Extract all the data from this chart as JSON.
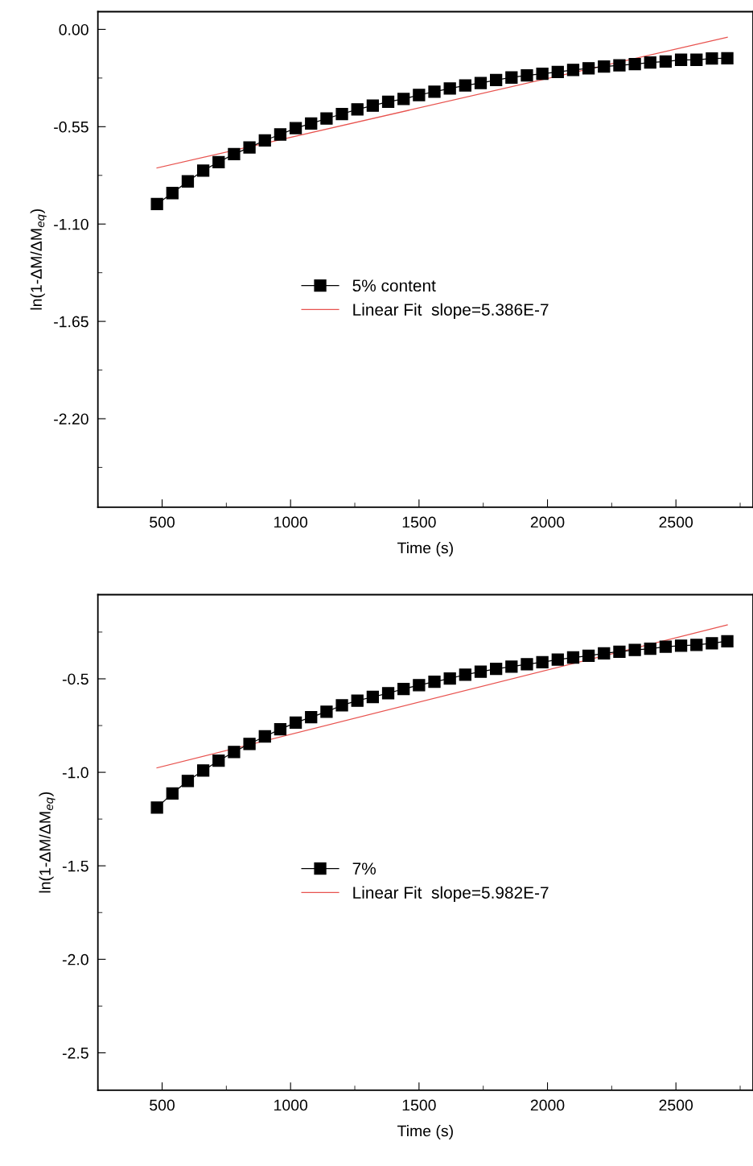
{
  "chart_data": [
    {
      "type": "line",
      "xlabel": "Time (s)",
      "ylabel": "ln(1-ΔM/ΔM$_{eq}$)",
      "xlim": [
        250,
        2800
      ],
      "xticks": [
        500,
        1000,
        1500,
        2000,
        2500
      ],
      "ylim": [
        -2.7,
        0.1
      ],
      "yticks": [
        {
          "value": 0,
          "label": "0.00"
        },
        -0.55,
        {
          "value": -1.1,
          "label": "-1.10"
        },
        -1.65,
        {
          "value": -2.2,
          "label": "-2.20"
        }
      ],
      "grid": false,
      "legend": "center",
      "series": [
        {
          "name": "5% content",
          "color": "#000000",
          "marker": "square",
          "line_style": "solid",
          "x": [
            480,
            540,
            600,
            660,
            720,
            780,
            840,
            900,
            960,
            1020,
            1080,
            1140,
            1200,
            1260,
            1320,
            1380,
            1440,
            1500,
            1560,
            1620,
            1680,
            1740,
            1800,
            1860,
            1920,
            1980,
            2040,
            2100,
            2160,
            2220,
            2280,
            2340,
            2400,
            2460,
            2520,
            2580,
            2640,
            2700
          ],
          "values": [
            -0.987,
            -0.925,
            -0.859,
            -0.798,
            -0.75,
            -0.705,
            -0.667,
            -0.627,
            -0.594,
            -0.558,
            -0.532,
            -0.504,
            -0.478,
            -0.452,
            -0.431,
            -0.409,
            -0.393,
            -0.371,
            -0.352,
            -0.334,
            -0.317,
            -0.303,
            -0.286,
            -0.272,
            -0.26,
            -0.251,
            -0.241,
            -0.229,
            -0.22,
            -0.21,
            -0.203,
            -0.196,
            -0.187,
            -0.182,
            -0.172,
            -0.172,
            -0.165,
            -0.163
          ]
        },
        {
          "name": "Linear Fit  slope=5.386E-7",
          "type": "line",
          "color": "#e8534f",
          "marker": "none",
          "line_style": "solid",
          "x": [
            480,
            2700
          ],
          "values": [
            -0.783,
            -0.045
          ]
        }
      ]
    },
    {
      "type": "line",
      "xlabel": "Time (s)",
      "ylabel": "ln(1-ΔM/ΔM$_{eq}$)",
      "xlim": [
        250,
        2800
      ],
      "xticks": [
        500,
        1000,
        1500,
        2000,
        2500
      ],
      "ylim": [
        -2.7,
        -0.05
      ],
      "yticks": [
        -0.5,
        {
          "value": -1.0,
          "label": "-1.0"
        },
        -1.5,
        {
          "value": -2.0,
          "label": "-2.0"
        },
        -2.5
      ],
      "grid": false,
      "legend": "center",
      "series": [
        {
          "name": "7%",
          "color": "#000000",
          "marker": "square",
          "line_style": "solid",
          "x": [
            480,
            540,
            600,
            660,
            720,
            780,
            840,
            900,
            960,
            1020,
            1080,
            1140,
            1200,
            1260,
            1320,
            1380,
            1440,
            1500,
            1560,
            1620,
            1680,
            1740,
            1800,
            1860,
            1920,
            1980,
            2040,
            2100,
            2160,
            2220,
            2280,
            2340,
            2400,
            2460,
            2520,
            2580,
            2640,
            2700
          ],
          "values": [
            -1.189,
            -1.113,
            -1.046,
            -0.99,
            -0.938,
            -0.891,
            -0.848,
            -0.808,
            -0.77,
            -0.734,
            -0.705,
            -0.676,
            -0.642,
            -0.617,
            -0.597,
            -0.577,
            -0.554,
            -0.534,
            -0.516,
            -0.498,
            -0.478,
            -0.462,
            -0.447,
            -0.435,
            -0.422,
            -0.411,
            -0.397,
            -0.386,
            -0.377,
            -0.364,
            -0.355,
            -0.346,
            -0.339,
            -0.328,
            -0.323,
            -0.319,
            -0.31,
            -0.299
          ]
        },
        {
          "name": "Linear Fit  slope=5.982E-7",
          "type": "line",
          "color": "#e8534f",
          "marker": "none",
          "line_style": "solid",
          "x": [
            480,
            2700
          ],
          "values": [
            -0.976,
            -0.212
          ]
        }
      ]
    }
  ]
}
